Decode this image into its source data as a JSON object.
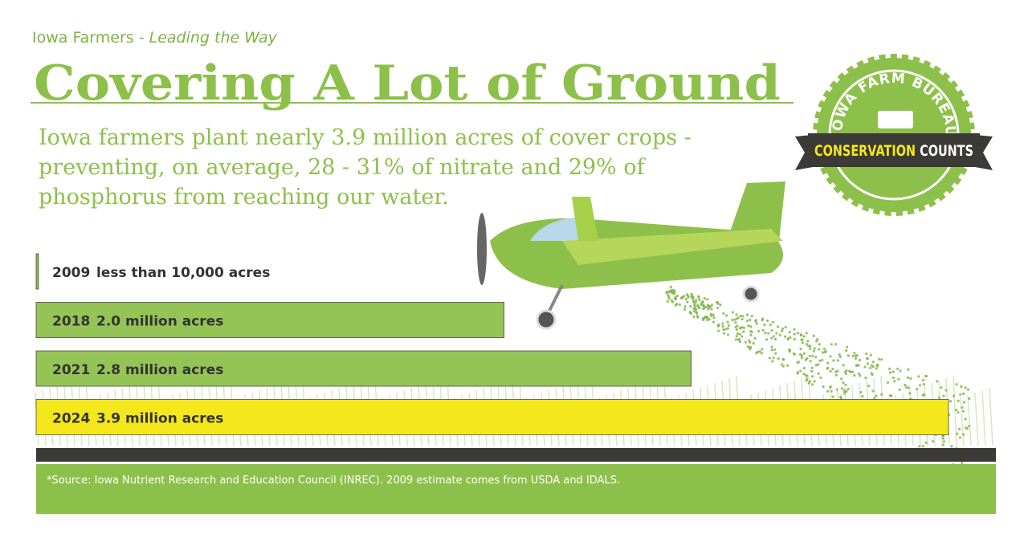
{
  "header": {
    "lead": "Iowa Farmers - ",
    "lead_italic": "Leading the Way"
  },
  "chart_data": {
    "type": "hbar",
    "title": "Covering A Lot of Ground",
    "subtitle_lines": [
      "Iowa farmers plant nearly 3.9 million acres of cover crops -",
      "preventing, on average, 28 - 31% of nitrate and 29% of",
      "phosphorus from reaching our water."
    ],
    "categories": [
      "2009",
      "2018",
      "2021",
      "2024"
    ],
    "values": [
      0.01,
      2.0,
      2.8,
      3.9
    ],
    "value_labels": [
      "less than 10,000 acres",
      "2.0 million acres",
      "2.8 million acres",
      "3.9 million acres"
    ],
    "colors": [
      "#8dc04a",
      "#94c455",
      "#94c455",
      "#f4e81c"
    ]
  },
  "badge": {
    "top": "IOWA FARM BUREAU",
    "banner_left": "CONSERVATION",
    "banner_right": "COUNTS"
  },
  "footer": {
    "source": "*Source: Iowa Nutrient Research and Education Council (INREC). 2009 estimate comes from USDA and IDALS."
  }
}
